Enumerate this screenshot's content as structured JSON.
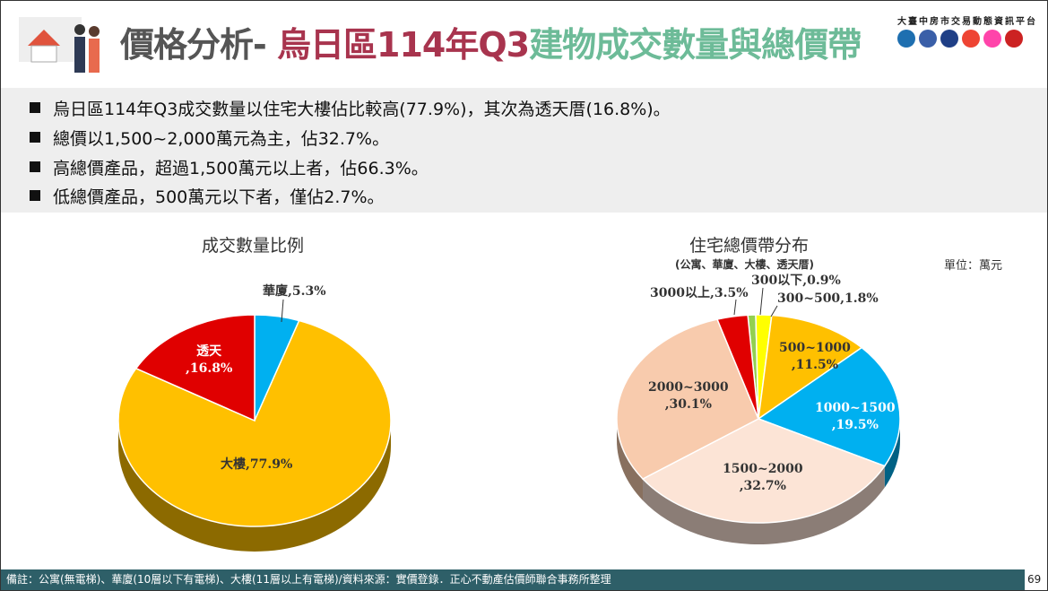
{
  "header": {
    "title_part1": "價格分析-",
    "title_part2": "烏日區114年Q3",
    "title_part3": "建物成交數量與總價帶",
    "platform": "大臺中房市交易動態資訊平台"
  },
  "bullets": [
    "烏日區114年Q3成交數量以住宅大樓佔比較高(77.9%)，其次為透天厝(16.8%)。",
    "總價以1,500~2,000萬元為主，佔32.7%。",
    "高總價產品，超過1,500萬元以上者，佔66.3%。",
    "低總價產品，500萬元以下者，僅佔2.7%。"
  ],
  "chart_data": [
    {
      "type": "pie",
      "title": "成交數量比例",
      "slices": [
        {
          "name": "華廈",
          "value": 5.3,
          "label": "華廈,5.3%",
          "color": "#00B0F0"
        },
        {
          "name": "大樓",
          "value": 77.9,
          "label": "大樓,77.9%",
          "color": "#FFC000"
        },
        {
          "name": "透天",
          "value": 16.8,
          "label": "透天\n,16.8%",
          "color": "#E00000"
        }
      ]
    },
    {
      "type": "pie",
      "title": "住宅總價帶分布",
      "subtitle": "(公寓、華廈、大樓、透天厝)",
      "unit": "單位：萬元",
      "slices": [
        {
          "name": "300以下",
          "value": 0.9,
          "label": "300以下,0.9%",
          "color": "#92D050"
        },
        {
          "name": "300~500",
          "value": 1.8,
          "label": "300~500,1.8%",
          "color": "#FFFF00"
        },
        {
          "name": "500~1000",
          "value": 11.5,
          "label": "500~1000\n,11.5%",
          "color": "#FFC000"
        },
        {
          "name": "1000~1500",
          "value": 19.5,
          "label": "1000~1500\n,19.5%",
          "color": "#00B0F0"
        },
        {
          "name": "1500~2000",
          "value": 32.7,
          "label": "1500~2000\n,32.7%",
          "color": "#FCE4D6"
        },
        {
          "name": "2000~3000",
          "value": 30.1,
          "label": "2000~3000\n,30.1%",
          "color": "#F8CBAD"
        },
        {
          "name": "3000以上",
          "value": 3.5,
          "label": "3000以上,3.5%",
          "color": "#E00000"
        }
      ]
    }
  ],
  "footer": {
    "note": "備註：公寓(無電梯)、華廈(10層以下有電梯)、大樓(11層以上有電梯)/資料來源：實價登錄．正心不動產估價師聯合事務所整理",
    "page": "69"
  }
}
